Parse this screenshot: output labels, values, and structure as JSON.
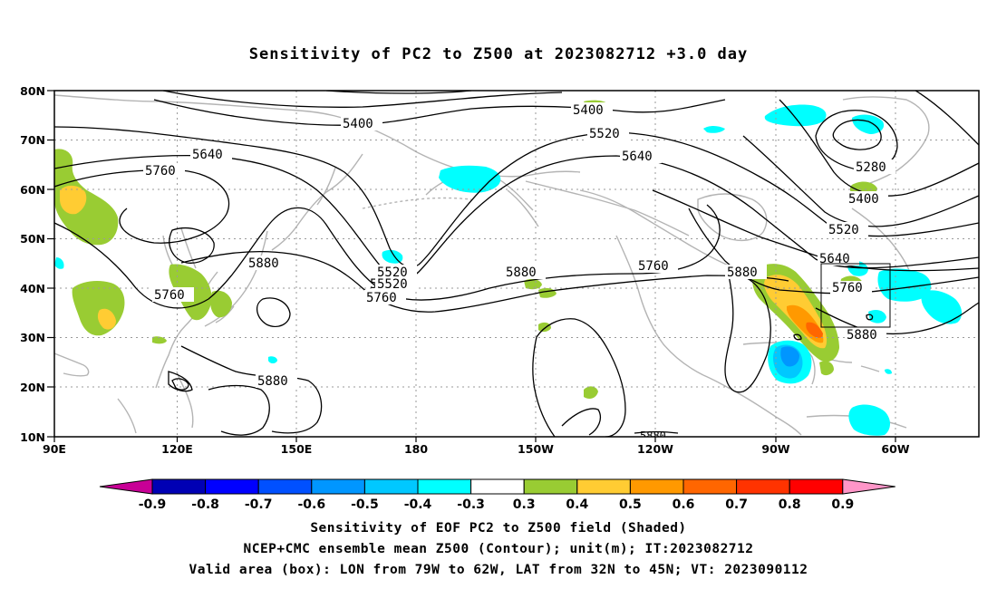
{
  "title": "Sensitivity of PC2 to Z500 at 2023082712 +3.0 day",
  "map": {
    "lat_labels": [
      "80N",
      "70N",
      "60N",
      "50N",
      "40N",
      "30N",
      "20N",
      "10N"
    ],
    "lon_labels": [
      "90E",
      "120E",
      "150E",
      "180",
      "150W",
      "120W",
      "90W",
      "60W"
    ],
    "contour_labels": [
      "5400",
      "5400",
      "5520",
      "5640",
      "5760",
      "5640",
      "5520",
      "5880",
      "5880",
      "5760",
      "5760",
      "5520",
      "5640",
      "5760",
      "5880",
      "5760",
      "5880",
      "5640",
      "5760",
      "5880",
      "5520",
      "5400",
      "5280",
      "5880"
    ],
    "colors": {
      "land": "#b4b4b4",
      "contour": "#000000",
      "neg_03_04": "#00ffff",
      "neg_04_05": "#00c8ff",
      "neg_05_06": "#0096ff",
      "pos_03_04": "#99cc33",
      "pos_04_05": "#ffcc33",
      "pos_05_06": "#ff9900",
      "pos_06_07": "#ff6600"
    }
  },
  "colorbar": {
    "labels": [
      "-0.9",
      "-0.8",
      "-0.7",
      "-0.6",
      "-0.5",
      "-0.4",
      "-0.3",
      "0.3",
      "0.4",
      "0.5",
      "0.6",
      "0.7",
      "0.8",
      "0.9"
    ],
    "colors": [
      "#c80096",
      "#0000b4",
      "#0000ff",
      "#0050ff",
      "#0096ff",
      "#00c8ff",
      "#00ffff",
      "#ffffff",
      "#99cc33",
      "#ffcc33",
      "#ff9900",
      "#ff6600",
      "#ff3300",
      "#ff0000",
      "#ff96c8"
    ]
  },
  "footer": {
    "line1": "Sensitivity of EOF PC2 to Z500 field (Shaded)",
    "line2": "NCEP+CMC ensemble mean Z500 (Contour); unit(m); IT:2023082712",
    "line3": "Valid area (box): LON from 79W to 62W, LAT from 32N to 45N; VT: 2023090112"
  }
}
